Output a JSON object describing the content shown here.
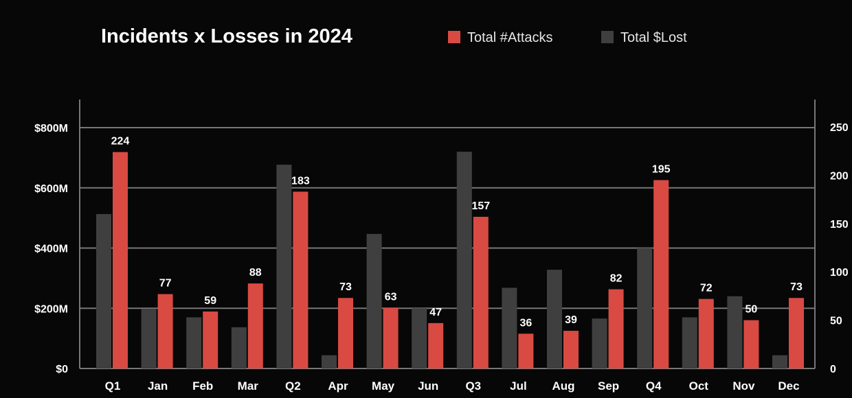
{
  "chart_data": {
    "type": "bar",
    "title": "Incidents x Losses in 2024",
    "categories": [
      "Q1",
      "Jan",
      "Feb",
      "Mar",
      "Q2",
      "Apr",
      "May",
      "Jun",
      "Q3",
      "Jul",
      "Aug",
      "Sep",
      "Q4",
      "Oct",
      "Nov",
      "Dec"
    ],
    "series": [
      {
        "name": "Total $Lost",
        "axis": "left",
        "color": "#3f3f3f",
        "values": [
          513,
          197,
          170,
          137,
          677,
          44,
          447,
          200,
          720,
          268,
          328,
          166,
          400,
          170,
          240,
          44
        ]
      },
      {
        "name": "Total #Attacks",
        "axis": "right",
        "color": "#d94a43",
        "values": [
          224,
          77,
          59,
          88,
          183,
          73,
          63,
          47,
          157,
          36,
          39,
          82,
          195,
          72,
          50,
          73
        ],
        "data_labels": [
          "224",
          "77",
          "59",
          "88",
          "183",
          "73",
          "63",
          "47",
          "157",
          "36",
          "39",
          "82",
          "195",
          "72",
          "50",
          "73"
        ]
      }
    ],
    "y_left": {
      "ticks": [
        "$0",
        "$200M",
        "$400M",
        "$600M",
        "$800M"
      ],
      "values": [
        0,
        200,
        400,
        600,
        800
      ],
      "range": [
        0,
        900
      ]
    },
    "y_right": {
      "ticks": [
        "0",
        "50",
        "100",
        "150",
        "200",
        "250"
      ],
      "values": [
        0,
        50,
        100,
        150,
        200,
        250
      ],
      "range": [
        0,
        287
      ]
    },
    "legend": {
      "placement": "top",
      "entries": [
        "Total #Attacks",
        "Total $Lost"
      ]
    },
    "grid": true,
    "axis_color": "#777777"
  }
}
